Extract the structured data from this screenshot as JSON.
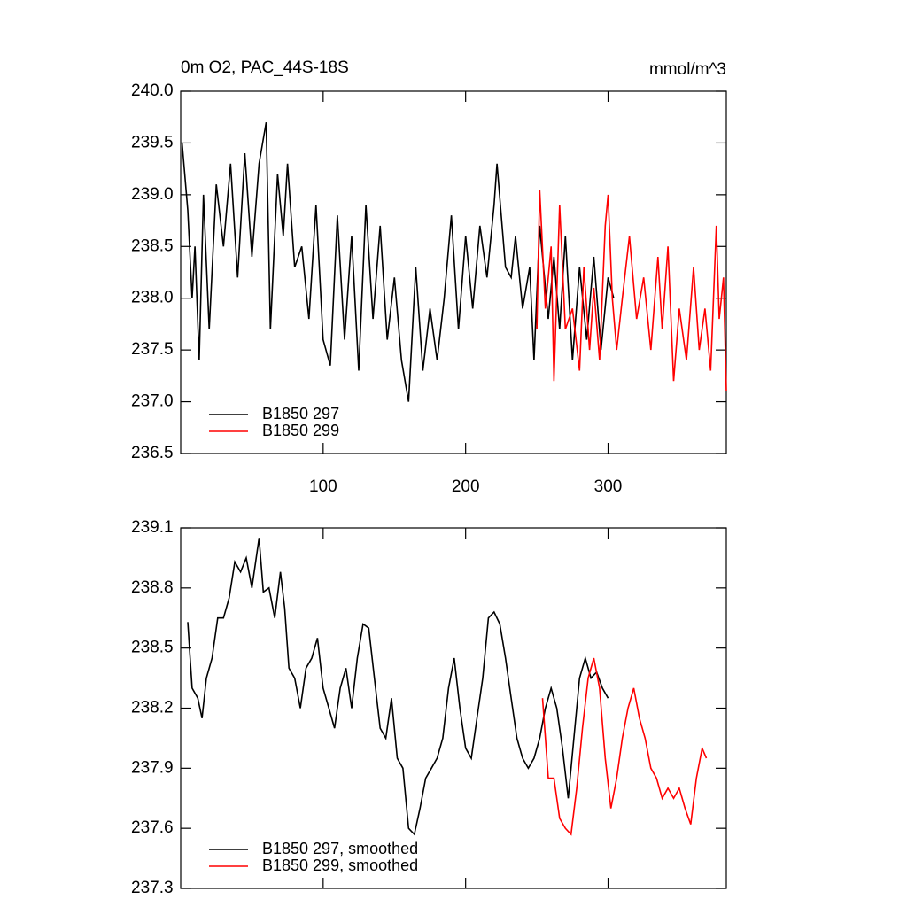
{
  "chart_data": [
    {
      "type": "line",
      "title": "0m O2, PAC_44S-18S",
      "units": "mmol/m^3",
      "xlim": [
        0,
        383
      ],
      "xticks": [
        100,
        200,
        300
      ],
      "ylim": [
        236.5,
        240
      ],
      "yticks": [
        {
          "value": 236.5,
          "label": "236.5"
        },
        {
          "value": 237,
          "label": "237.0"
        },
        237.5,
        {
          "value": 238,
          "label": "238.0"
        },
        238.5,
        {
          "value": 239,
          "label": "239.0"
        },
        239.5,
        {
          "value": 240,
          "label": "240.0"
        }
      ],
      "legend": "bottom-left",
      "series": [
        {
          "name": "B1850 297",
          "color": "#000000",
          "x": [
            1,
            5,
            8,
            10,
            13,
            16,
            20,
            25,
            30,
            35,
            40,
            45,
            50,
            55,
            60,
            63,
            68,
            72,
            75,
            80,
            85,
            90,
            95,
            100,
            105,
            110,
            115,
            120,
            125,
            130,
            135,
            140,
            145,
            150,
            155,
            160,
            165,
            170,
            175,
            180,
            185,
            190,
            195,
            200,
            205,
            210,
            215,
            220,
            222,
            228,
            232,
            235,
            240,
            245,
            248,
            252,
            258,
            262,
            266,
            270,
            275,
            280,
            285,
            290,
            295,
            300,
            304
          ],
          "values": [
            239.5,
            238.85,
            238.0,
            238.5,
            237.4,
            239.0,
            237.7,
            239.1,
            238.5,
            239.3,
            238.2,
            239.4,
            238.4,
            239.3,
            239.7,
            237.7,
            239.2,
            238.6,
            239.3,
            238.3,
            238.5,
            237.8,
            238.9,
            237.6,
            237.35,
            238.8,
            237.6,
            238.6,
            237.3,
            238.9,
            237.8,
            238.7,
            237.6,
            238.2,
            237.4,
            237.0,
            238.3,
            237.3,
            237.9,
            237.4,
            238.0,
            238.8,
            237.7,
            238.6,
            237.9,
            238.7,
            238.2,
            238.9,
            239.3,
            238.3,
            238.2,
            238.6,
            237.9,
            238.3,
            237.4,
            238.7,
            237.8,
            238.4,
            237.7,
            238.6,
            237.4,
            238.3,
            237.6,
            238.4,
            237.5,
            238.2,
            238.0
          ]
        },
        {
          "name": "B1850 299",
          "color": "#ff0000",
          "x": [
            250,
            252,
            256,
            260,
            262,
            266,
            270,
            275,
            280,
            283,
            287,
            290,
            294,
            298,
            300,
            303,
            306,
            310,
            315,
            320,
            325,
            330,
            335,
            338,
            342,
            346,
            350,
            355,
            360,
            364,
            368,
            372,
            376,
            378,
            381,
            383
          ],
          "values": [
            237.7,
            239.05,
            237.9,
            238.5,
            237.2,
            238.9,
            237.7,
            237.9,
            237.3,
            238.3,
            237.5,
            238.1,
            237.4,
            238.7,
            239.0,
            238.0,
            237.5,
            238.0,
            238.6,
            237.8,
            238.2,
            237.5,
            238.4,
            237.7,
            238.5,
            237.2,
            237.9,
            237.4,
            238.3,
            237.5,
            237.9,
            237.3,
            238.7,
            237.8,
            238.2,
            237.1
          ]
        }
      ]
    },
    {
      "type": "line",
      "xlim": [
        0,
        383
      ],
      "xticks": [
        100,
        200,
        300
      ],
      "ylim": [
        237.3,
        239.1
      ],
      "yticks": [
        237.3,
        237.6,
        237.9,
        238.2,
        238.5,
        238.8,
        239.1
      ],
      "legend": "bottom-left",
      "series": [
        {
          "name": "B1850 297, smoothed",
          "color": "#000000",
          "x": [
            5,
            8,
            12,
            15,
            18,
            22,
            26,
            30,
            34,
            38,
            42,
            46,
            50,
            55,
            58,
            62,
            66,
            70,
            73,
            76,
            80,
            84,
            88,
            92,
            96,
            100,
            104,
            108,
            112,
            116,
            120,
            124,
            128,
            132,
            136,
            140,
            144,
            148,
            152,
            156,
            160,
            164,
            168,
            172,
            176,
            180,
            184,
            188,
            192,
            196,
            200,
            204,
            208,
            212,
            216,
            220,
            224,
            228,
            232,
            236,
            240,
            244,
            248,
            252,
            256,
            260,
            264,
            268,
            272,
            276,
            280,
            284,
            288,
            292,
            296,
            300
          ],
          "values": [
            238.63,
            238.3,
            238.25,
            238.15,
            238.35,
            238.45,
            238.65,
            238.65,
            238.75,
            238.93,
            238.88,
            238.95,
            238.8,
            239.05,
            238.78,
            238.8,
            238.65,
            238.88,
            238.7,
            238.4,
            238.35,
            238.2,
            238.4,
            238.45,
            238.55,
            238.3,
            238.2,
            238.1,
            238.3,
            238.4,
            238.2,
            238.45,
            238.62,
            238.6,
            238.35,
            238.1,
            238.05,
            238.25,
            237.95,
            237.9,
            237.6,
            237.57,
            237.7,
            237.85,
            237.9,
            237.95,
            238.05,
            238.3,
            238.45,
            238.2,
            238.0,
            237.95,
            238.15,
            238.35,
            238.65,
            238.68,
            238.62,
            238.45,
            238.25,
            238.05,
            237.95,
            237.9,
            237.95,
            238.05,
            238.2,
            238.3,
            238.2,
            238.0,
            237.75,
            238.05,
            238.35,
            238.45,
            238.35,
            238.38,
            238.3,
            238.25
          ]
        },
        {
          "name": "B1850 299, smoothed",
          "color": "#ff0000",
          "x": [
            254,
            258,
            262,
            266,
            270,
            274,
            278,
            282,
            286,
            290,
            294,
            298,
            302,
            306,
            310,
            314,
            318,
            322,
            326,
            330,
            334,
            338,
            342,
            346,
            350,
            354,
            358,
            362,
            366,
            369
          ],
          "values": [
            238.25,
            237.85,
            237.85,
            237.65,
            237.6,
            237.57,
            237.8,
            238.1,
            238.35,
            238.45,
            238.3,
            237.95,
            237.7,
            237.85,
            238.05,
            238.2,
            238.3,
            238.15,
            238.05,
            237.9,
            237.85,
            237.75,
            237.8,
            237.75,
            237.8,
            237.7,
            237.62,
            237.85,
            238.0,
            237.95
          ]
        }
      ]
    }
  ]
}
